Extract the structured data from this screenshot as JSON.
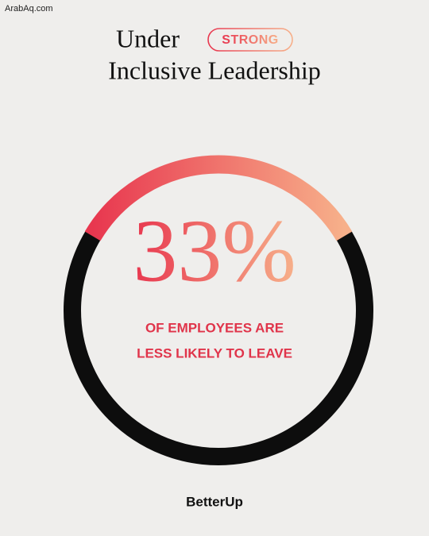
{
  "watermark": "ArabAq.com",
  "chart_data": {
    "type": "donut",
    "title": "Under",
    "title_badge": "STRONG",
    "subtitle": "Inclusive Leadership",
    "values": [
      33
    ],
    "value_labels": [
      "33%"
    ],
    "colors": [
      "#e8374f",
      "#f7b08a"
    ],
    "track_color": "#0d0d0d",
    "caption": [
      "OF EMPLOYEES ARE",
      "LESS LIKELY TO LEAVE"
    ]
  },
  "brand": "BetterUp"
}
